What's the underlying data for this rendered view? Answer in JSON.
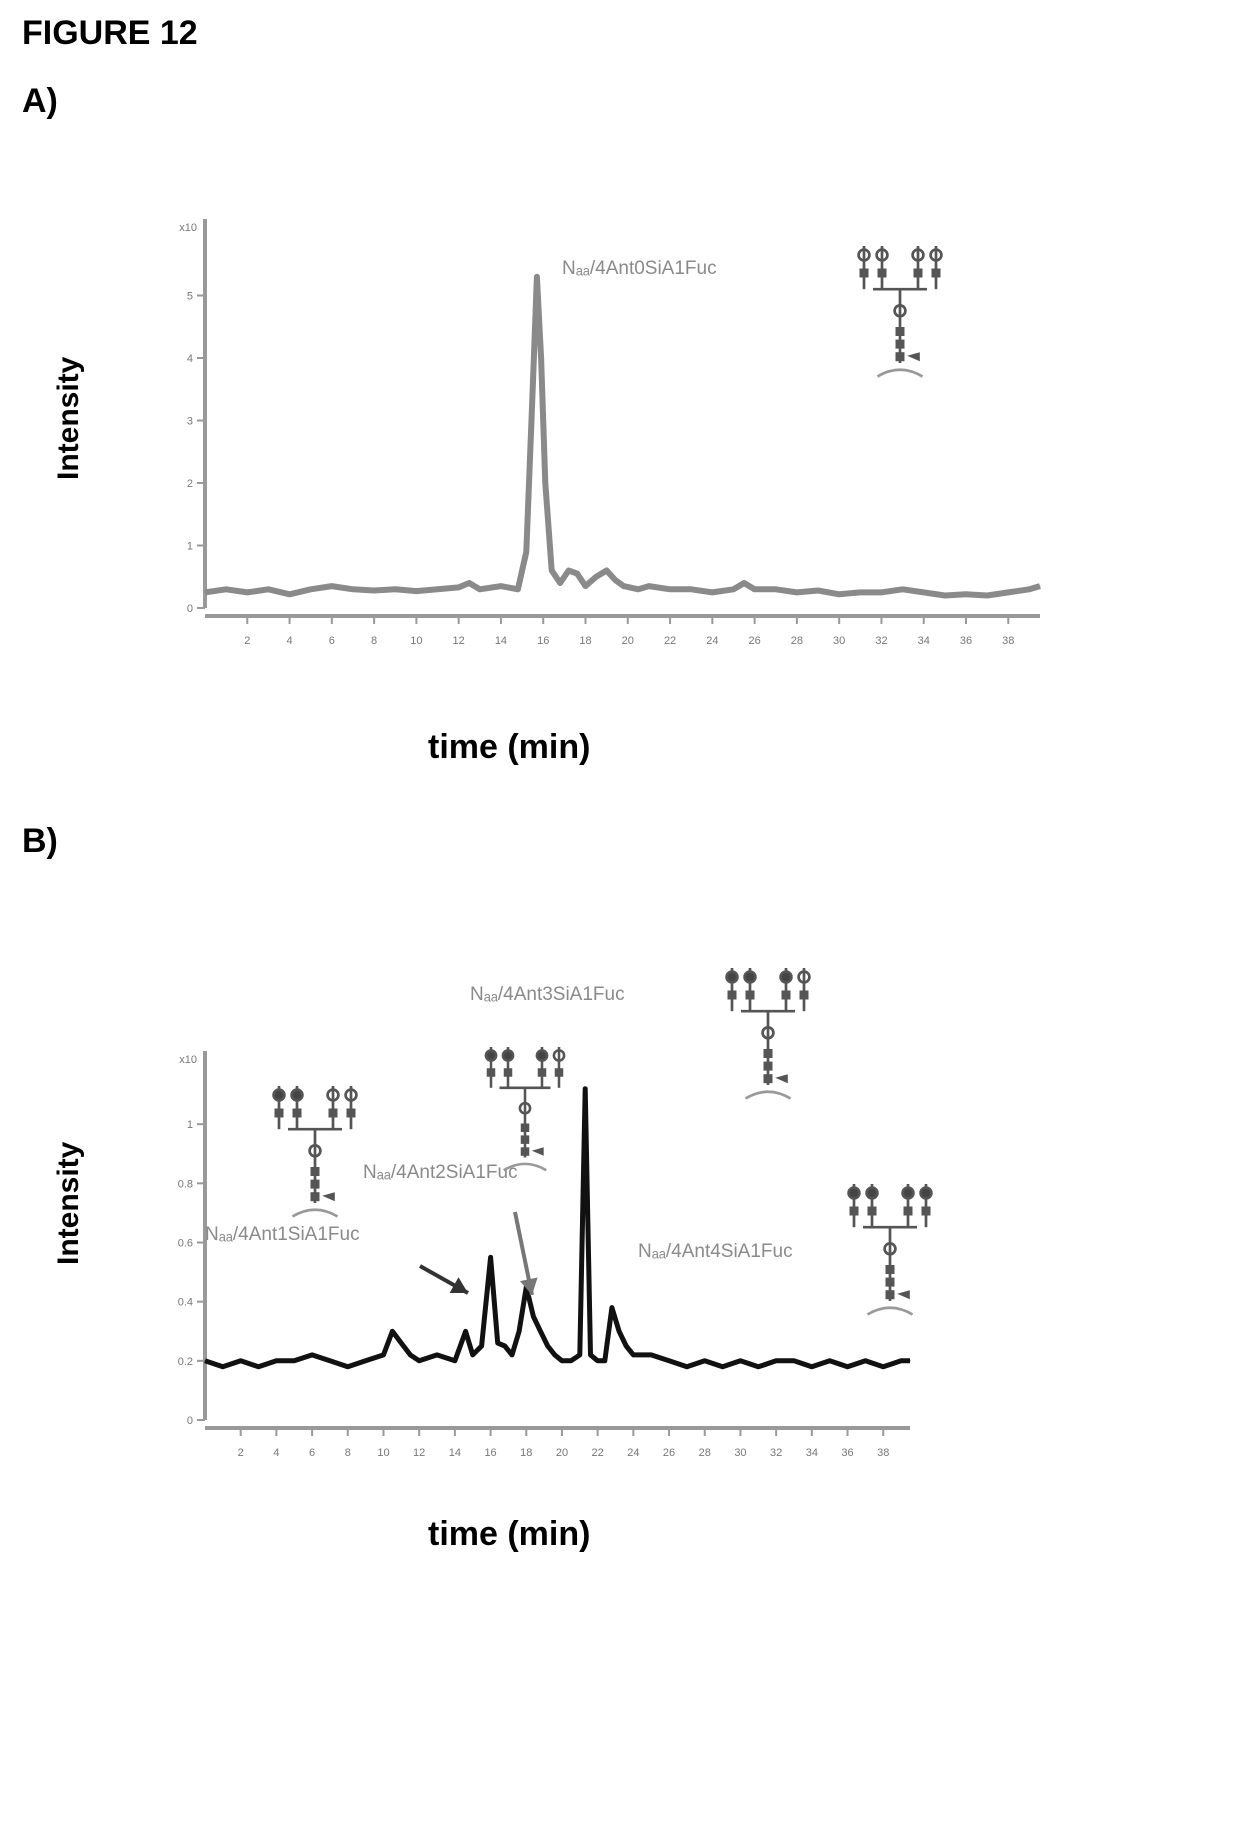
{
  "figure_title": "FIGURE 12",
  "chart_data": [
    {
      "type": "line",
      "panel": "A)",
      "xlabel": "time (min)",
      "ylabel": "Intensity",
      "xlim": [
        0,
        39.5
      ],
      "ylim": [
        0,
        6
      ],
      "x_ticks": [
        2,
        4,
        6,
        8,
        10,
        12,
        14,
        16,
        18,
        20,
        22,
        24,
        26,
        28,
        30,
        32,
        34,
        36,
        38
      ],
      "y_ticks": [
        0,
        1,
        2,
        3,
        4,
        5
      ],
      "y_top_label": "x10",
      "series": [
        {
          "color": "#8a8a8a",
          "x": [
            0,
            1,
            2,
            3,
            4,
            5,
            6,
            7,
            8,
            9,
            10,
            11,
            12,
            12.5,
            13,
            14,
            14.8,
            15.2,
            15.5,
            15.7,
            15.9,
            16.1,
            16.4,
            16.8,
            17.2,
            17.6,
            18,
            18.5,
            19,
            19.4,
            19.8,
            20.5,
            21,
            22,
            23,
            24,
            25,
            25.5,
            26,
            27,
            28,
            29,
            30,
            31,
            32,
            33,
            34,
            35,
            36,
            37,
            38,
            39,
            39.5
          ],
          "y": [
            0.25,
            0.3,
            0.25,
            0.3,
            0.22,
            0.3,
            0.35,
            0.3,
            0.28,
            0.3,
            0.27,
            0.3,
            0.33,
            0.4,
            0.3,
            0.35,
            0.3,
            0.9,
            3.5,
            5.3,
            4.0,
            2.0,
            0.6,
            0.4,
            0.6,
            0.55,
            0.35,
            0.5,
            0.6,
            0.45,
            0.35,
            0.3,
            0.35,
            0.3,
            0.3,
            0.25,
            0.3,
            0.4,
            0.3,
            0.3,
            0.25,
            0.28,
            0.22,
            0.25,
            0.25,
            0.3,
            0.25,
            0.2,
            0.22,
            0.2,
            0.25,
            0.3,
            0.35
          ]
        }
      ],
      "annotations": [
        {
          "text": "Nₐₐ/4Ant0SiA1Fuc",
          "x": 15.6,
          "y": 5.3
        }
      ]
    },
    {
      "type": "line",
      "panel": "B)",
      "xlabel": "time (min)",
      "ylabel": "Intensity",
      "xlim": [
        0,
        39.5
      ],
      "ylim": [
        0,
        1.2
      ],
      "x_ticks": [
        2,
        4,
        6,
        8,
        10,
        12,
        14,
        16,
        18,
        20,
        22,
        24,
        26,
        28,
        30,
        32,
        34,
        36,
        38
      ],
      "y_ticks": [
        0,
        0.2,
        0.4,
        0.6,
        0.8,
        1.0
      ],
      "y_top_label": "x10",
      "series": [
        {
          "color": "#111111",
          "x": [
            0,
            1,
            2,
            3,
            4,
            5,
            6,
            7,
            8,
            9,
            10,
            10.5,
            11,
            11.5,
            12,
            13,
            14,
            14.6,
            15,
            15.5,
            16,
            16.4,
            16.8,
            17.2,
            17.6,
            18,
            18.4,
            18.8,
            19.2,
            19.6,
            20,
            20.5,
            21,
            21.3,
            21.6,
            22,
            22.4,
            22.8,
            23.2,
            23.6,
            24,
            25,
            26,
            27,
            28,
            29,
            30,
            31,
            32,
            33,
            34,
            35,
            36,
            37,
            38,
            39,
            39.5
          ],
          "y": [
            0.2,
            0.18,
            0.2,
            0.18,
            0.2,
            0.2,
            0.22,
            0.2,
            0.18,
            0.2,
            0.22,
            0.3,
            0.26,
            0.22,
            0.2,
            0.22,
            0.2,
            0.3,
            0.22,
            0.25,
            0.55,
            0.26,
            0.25,
            0.22,
            0.3,
            0.45,
            0.35,
            0.3,
            0.25,
            0.22,
            0.2,
            0.2,
            0.22,
            1.12,
            0.22,
            0.2,
            0.2,
            0.38,
            0.3,
            0.25,
            0.22,
            0.22,
            0.2,
            0.18,
            0.2,
            0.18,
            0.2,
            0.18,
            0.2,
            0.2,
            0.18,
            0.2,
            0.18,
            0.2,
            0.18,
            0.2,
            0.2
          ]
        }
      ],
      "annotations": [
        {
          "text": "Nₐₐ/4Ant1SiA1Fuc",
          "x": 16.0,
          "y": 0.55
        },
        {
          "text": "Nₐₐ/4Ant2SiA1Fuc",
          "x": 18.0,
          "y": 0.45
        },
        {
          "text": "Nₐₐ/4Ant3SiA1Fuc",
          "x": 21.3,
          "y": 1.12
        },
        {
          "text": "Nₐₐ/4Ant4SiA1Fuc",
          "x": 23.0,
          "y": 0.38
        }
      ]
    }
  ]
}
